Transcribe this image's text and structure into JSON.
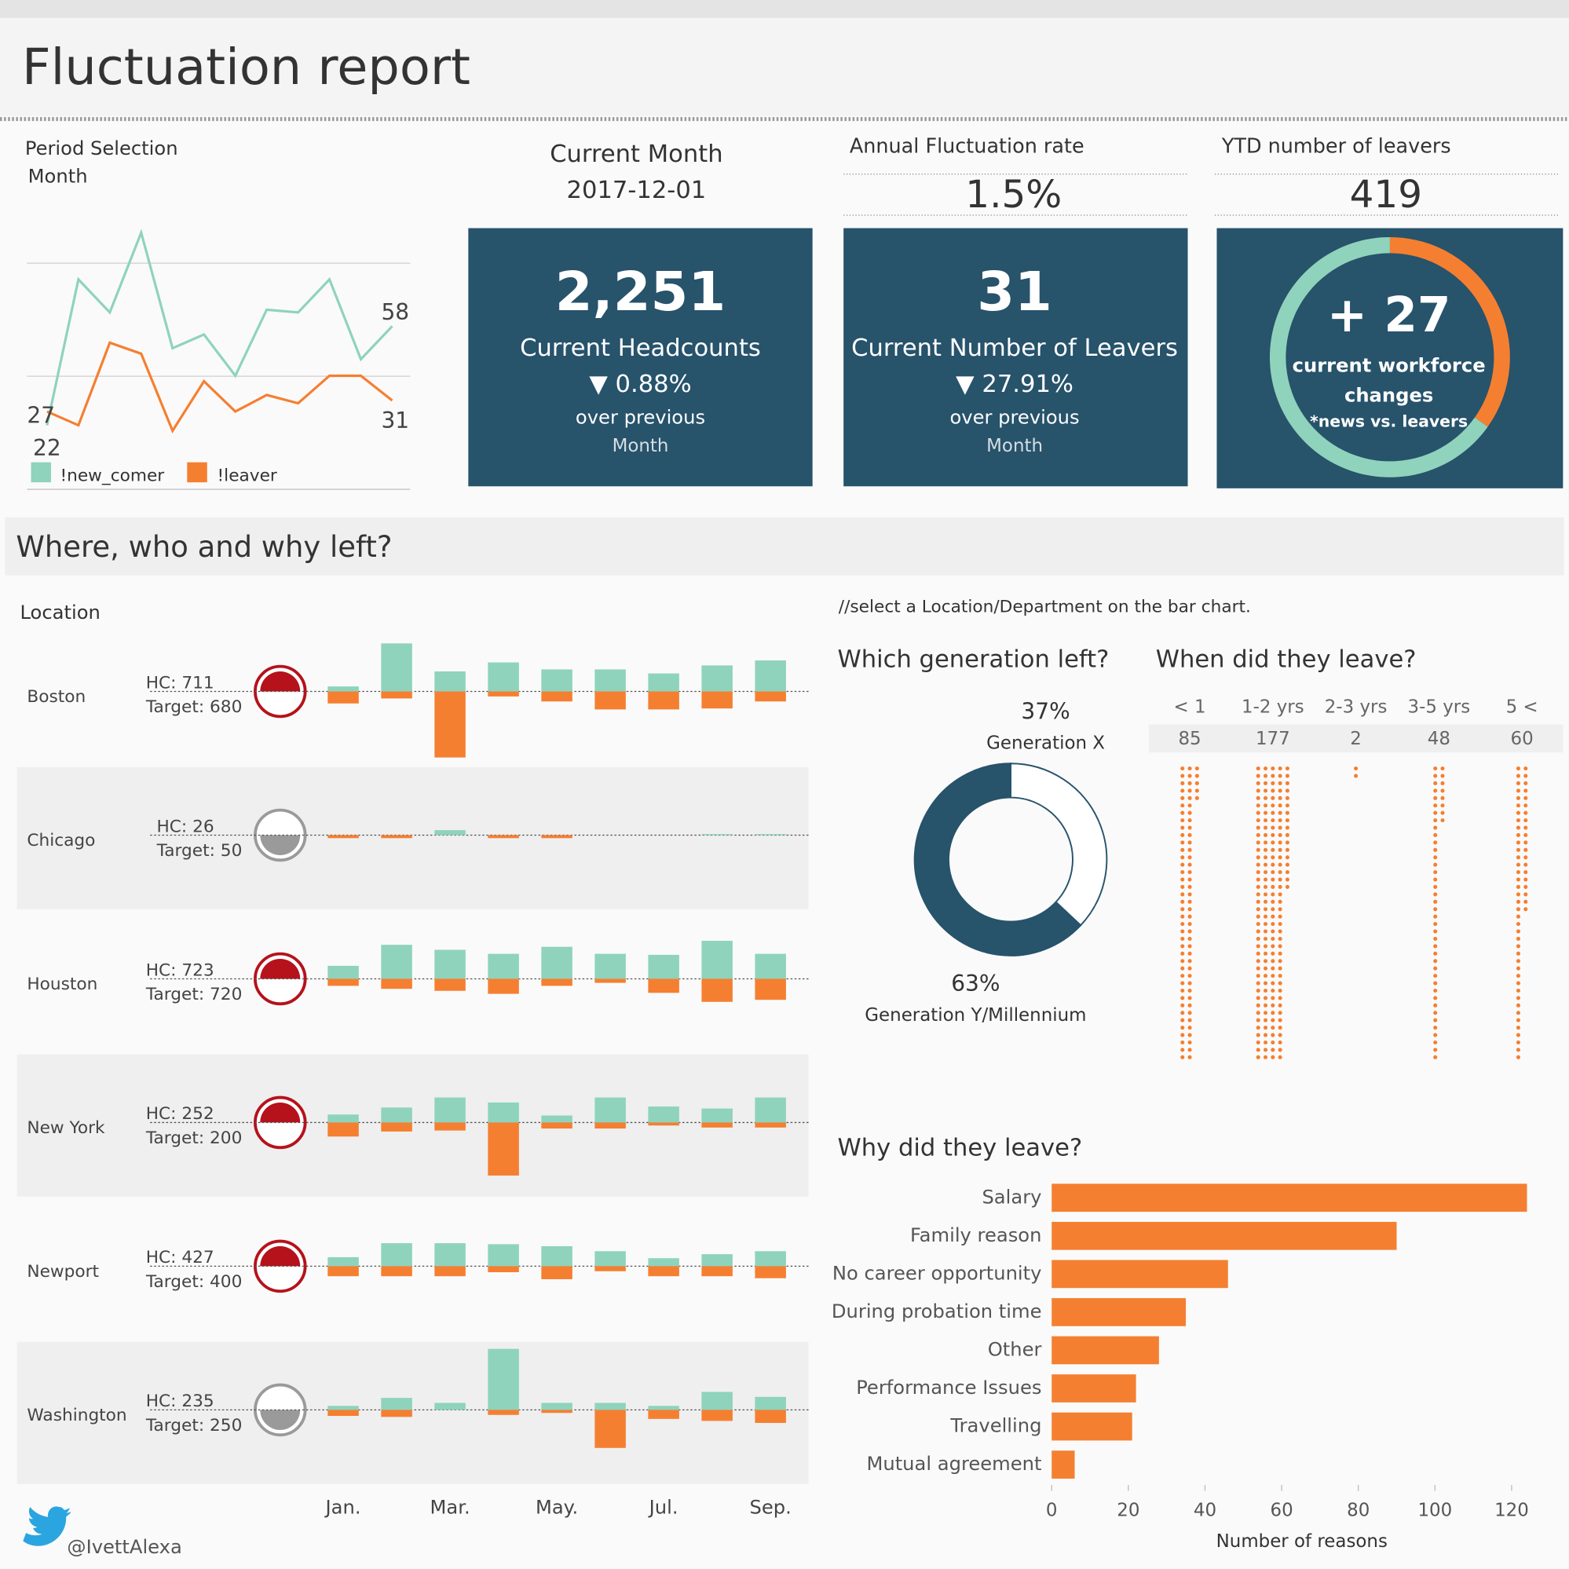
{
  "header": {
    "title": "Fluctuation report"
  },
  "period": {
    "label": "Period Selection",
    "value": "Month"
  },
  "kpis": {
    "current_month": {
      "label": "Current Month",
      "value": "2017-12-01"
    },
    "annual_rate": {
      "label": "Annual Fluctuation rate",
      "value": "1.5%"
    },
    "ytd_leavers": {
      "label": "YTD number of leavers",
      "value": "419"
    },
    "headcounts": {
      "value": "2,251",
      "label": "Current Headcounts",
      "change": "▼ 0.88%",
      "note": "over previous",
      "period": "Month"
    },
    "leavers": {
      "value": "31",
      "label": "Current Number of Leavers",
      "change": "▼ 27.91%",
      "note": "over previous",
      "period": "Month"
    },
    "workforce": {
      "value": "+ 27",
      "label_lines": [
        "current workforce",
        "changes"
      ],
      "note": "*news vs. leavers"
    }
  },
  "sections": {
    "where": "Where, who and why left?",
    "location": "Location",
    "hint": "//select a Location/Department on the bar chart.",
    "generation": "Which generation left?",
    "tenure": "When did they leave?",
    "reasons": "Why did they leave?"
  },
  "footer": {
    "handle": "@IvettAlexa"
  },
  "chart_data": [
    {
      "type": "line",
      "ylim": [
        15,
        95
      ],
      "series": [
        {
          "name": "!new_comer",
          "color": "#8fd3bc",
          "values": [
            22,
            75,
            63,
            92,
            50,
            55,
            40,
            64,
            63,
            75,
            46,
            58
          ]
        },
        {
          "name": "!leaver",
          "color": "#f57f31",
          "values": [
            27,
            22,
            52,
            48,
            20,
            38,
            27,
            33,
            30,
            40,
            40,
            31
          ]
        }
      ]
    },
    {
      "type": "donut",
      "values": [
        31,
        58
      ],
      "colors": [
        "#f57f31",
        "#8fd3bc"
      ]
    },
    {
      "type": "diverging-bar",
      "categories": [
        "Jan.",
        null,
        "Mar.",
        null,
        "May.",
        null,
        "Jul.",
        null,
        "Sep."
      ],
      "colors": {
        "new_comer": "#8fd3bc",
        "leaver": "#f57f31"
      },
      "status_colors": {
        "above": "#b5121b",
        "below": "#9a9a9a"
      },
      "ylim": [
        -70,
        70
      ],
      "rows": [
        {
          "name": "Boston",
          "hc": "HC: 711",
          "target": "Target: 680",
          "status": "above",
          "new_comer": [
            5,
            48,
            20,
            29,
            22,
            22,
            18,
            26,
            31
          ],
          "leaver": [
            -12,
            -7,
            -66,
            -5,
            -10,
            -18,
            -18,
            -17,
            -10
          ]
        },
        {
          "name": "Chicago",
          "hc": "HC: 26",
          "target": "Target: 50",
          "status": "below",
          "new_comer": [
            0,
            0,
            5,
            0,
            0,
            0,
            0,
            1,
            1
          ],
          "leaver": [
            -3,
            -3,
            0,
            -3,
            -3,
            0,
            0,
            0,
            0
          ]
        },
        {
          "name": "Houston",
          "hc": "HC: 723",
          "target": "Target: 720",
          "status": "above",
          "new_comer": [
            13,
            34,
            29,
            25,
            32,
            25,
            24,
            38,
            25
          ],
          "leaver": [
            -7,
            -10,
            -12,
            -15,
            -7,
            -4,
            -14,
            -23,
            -21
          ]
        },
        {
          "name": "New York",
          "hc": "HC: 252",
          "target": "Target: 200",
          "status": "above",
          "new_comer": [
            8,
            15,
            25,
            20,
            7,
            25,
            16,
            14,
            25
          ],
          "leaver": [
            -14,
            -9,
            -8,
            -53,
            -6,
            -6,
            -3,
            -5,
            -5
          ]
        },
        {
          "name": "Newport",
          "hc": "HC: 427",
          "target": "Target: 400",
          "status": "above",
          "new_comer": [
            9,
            23,
            23,
            22,
            20,
            15,
            8,
            12,
            15
          ],
          "leaver": [
            -10,
            -10,
            -10,
            -6,
            -13,
            -5,
            -10,
            -10,
            -12
          ]
        },
        {
          "name": "Washington",
          "hc": "HC: 235",
          "target": "Target: 250",
          "status": "below",
          "new_comer": [
            4,
            12,
            7,
            61,
            7,
            7,
            4,
            18,
            13
          ],
          "leaver": [
            -6,
            -7,
            0,
            -5,
            -3,
            -38,
            -9,
            -11,
            -13
          ]
        }
      ]
    },
    {
      "type": "donut",
      "labels": [
        "Generation X",
        "Generation Y/Millennium"
      ],
      "values": [
        37,
        63
      ],
      "value_labels": [
        "37%",
        "63%"
      ],
      "colors": [
        "#ffffff",
        "#27536b"
      ],
      "stroke": "#27536b"
    },
    {
      "type": "dot-plot",
      "categories": [
        "< 1",
        "1-2 yrs",
        "2-3 yrs",
        "3-5 yrs",
        "5 <"
      ],
      "values": [
        85,
        177,
        2,
        48,
        60
      ],
      "color": "#f57f31"
    },
    {
      "type": "hbar",
      "xlabel": "Number of reasons",
      "categories": [
        "Salary",
        "Family reason",
        "No career opportunity",
        "During probation time",
        "Other",
        "Performance Issues",
        "Travelling",
        "Mutual agreement"
      ],
      "values": [
        124,
        90,
        46,
        35,
        28,
        22,
        21,
        6
      ],
      "color": "#f57f31",
      "xlim": [
        0,
        130
      ],
      "xticks": [
        0,
        20,
        40,
        60,
        80,
        100,
        120
      ]
    }
  ]
}
